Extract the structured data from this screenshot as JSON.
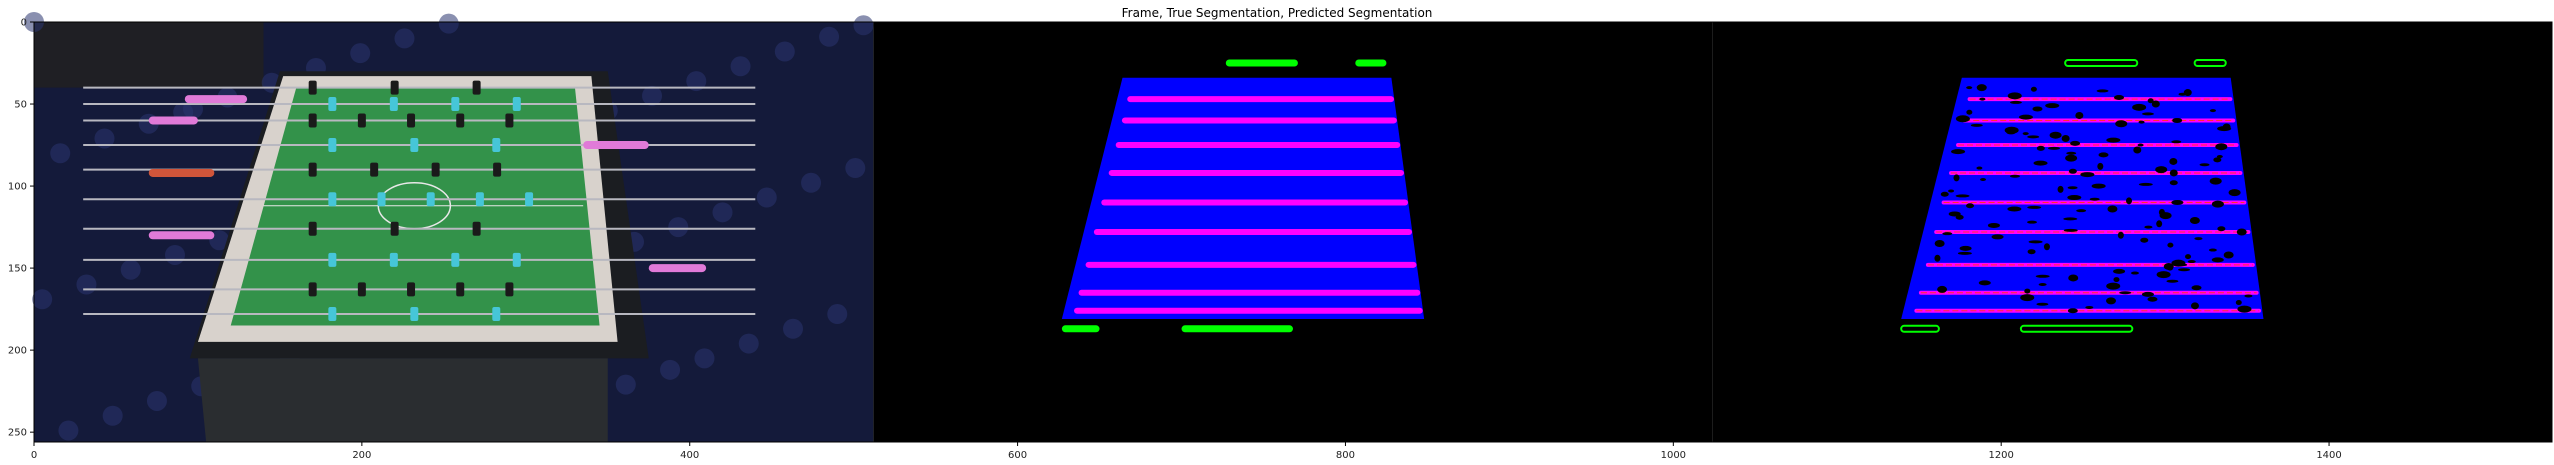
{
  "chart_data": {
    "type": "image",
    "title": "Frame, True Segmentation, Predicted Segmentation",
    "xlim": [
      0,
      1536
    ],
    "ylim": [
      256,
      0
    ],
    "xticks": [
      0,
      200,
      400,
      600,
      800,
      1000,
      1200,
      1400
    ],
    "yticks": [
      0,
      50,
      100,
      150,
      200,
      250
    ],
    "panels": [
      {
        "name": "Frame",
        "x_range": [
          0,
          512
        ]
      },
      {
        "name": "True Segmentation",
        "x_range": [
          512,
          1024
        ]
      },
      {
        "name": "Predicted Segmentation",
        "x_range": [
          1024,
          1536
        ]
      }
    ],
    "segmentation": {
      "table_quad": [
        [
          664,
          34
        ],
        [
          828,
          34
        ],
        [
          848,
          181
        ],
        [
          627,
          181
        ]
      ],
      "rod_rows": [
        47,
        60,
        75,
        92,
        110,
        128,
        148,
        165,
        176
      ],
      "ball_blobs": [
        {
          "x": [
            727,
            771
          ],
          "y": 25
        },
        {
          "x": [
            806,
            825
          ],
          "y": 25
        },
        {
          "x": [
            627,
            650
          ],
          "y": 187
        },
        {
          "x": [
            700,
            768
          ],
          "y": 187
        }
      ],
      "pred_offset_x": 512,
      "colors": {
        "table": "#0000ff",
        "rod": "#ff00ff",
        "ball": "#00ff00",
        "background": "#000000"
      }
    },
    "frame": {
      "colors": {
        "carpet": "#141a3a",
        "field": "#33924a",
        "table_body": "#1b1d21",
        "rim": "#d8d2cc",
        "player_cyan": "#46c6d8",
        "player_black": "#1a1a1a",
        "handle_pink": "#e07ad8"
      }
    }
  }
}
